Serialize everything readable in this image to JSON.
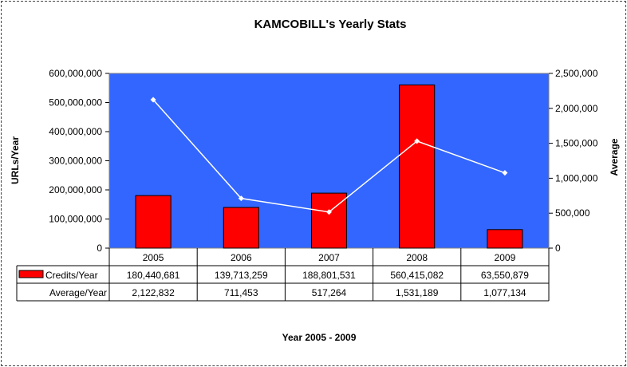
{
  "chart_data": {
    "type": "bar",
    "title": "KAMCOBILL's Yearly Stats",
    "xlabel": "Year 2005 - 2009",
    "ylabel": "URLs/Year",
    "y2label": "Average",
    "categories": [
      "2005",
      "2006",
      "2007",
      "2008",
      "2009"
    ],
    "ylim": [
      0,
      600000000
    ],
    "y2lim": [
      0,
      2500000
    ],
    "y_ticks": [
      "0",
      "100,000,000",
      "200,000,000",
      "300,000,000",
      "400,000,000",
      "500,000,000",
      "600,000,000"
    ],
    "y2_ticks": [
      "0",
      "500,000",
      "1,000,000",
      "1,500,000",
      "2,000,000",
      "2,500,000"
    ],
    "grid": false,
    "legend": "data-table",
    "plot_background": "#3366ff",
    "series": [
      {
        "name": "Credits/Year",
        "type": "bar",
        "axis": "left",
        "color": "#ff0000",
        "values": [
          180440681,
          139713259,
          188801531,
          560415082,
          63550879
        ],
        "labels": [
          "180,440,681",
          "139,713,259",
          "188,801,531",
          "560,415,082",
          "63,550,879"
        ]
      },
      {
        "name": "Average/Year",
        "type": "line",
        "axis": "right",
        "color": "#ffffff",
        "values": [
          2122832,
          711453,
          517264,
          1531189,
          1077134
        ],
        "labels": [
          "2,122,832",
          "711,453",
          "517,264",
          "1,531,189",
          "1,077,134"
        ]
      }
    ]
  }
}
